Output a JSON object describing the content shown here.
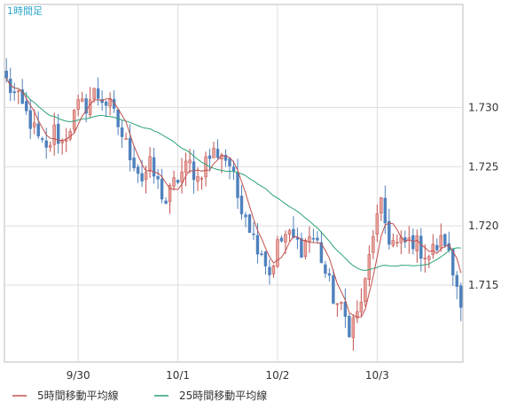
{
  "chart_data": {
    "type": "candlestick",
    "timeframe_label": "1時間足",
    "y_ticks": [
      1.715,
      1.72,
      1.725,
      1.73
    ],
    "y_tick_labels": [
      "1.715",
      "1.720",
      "1.725",
      "1.730"
    ],
    "ylim": [
      1.7085,
      1.7387
    ],
    "x_tick_labels": [
      "9/30",
      "10/1",
      "10/2",
      "10/3"
    ],
    "x_tick_index": [
      18,
      43,
      68,
      93
    ],
    "candle_count": 115,
    "legend": [
      {
        "name": "5時間移動平均線",
        "color": "#c0504d"
      },
      {
        "name": "25時間移動平均線",
        "color": "#2aa373"
      }
    ],
    "colors": {
      "up": "#e8a09a",
      "down": "#4f81bd",
      "ma5": "#c0504d",
      "ma25": "#2aa373",
      "grid": "#dddddd",
      "border": "#bbbbbb"
    },
    "close_anchors": [
      [
        0,
        1.7322
      ],
      [
        2,
        1.731
      ],
      [
        4,
        1.73
      ],
      [
        6,
        1.7288
      ],
      [
        8,
        1.7272
      ],
      [
        10,
        1.7262
      ],
      [
        12,
        1.728
      ],
      [
        14,
        1.727
      ],
      [
        16,
        1.7285
      ],
      [
        18,
        1.73
      ],
      [
        20,
        1.7302
      ],
      [
        22,
        1.7312
      ],
      [
        24,
        1.7308
      ],
      [
        26,
        1.73
      ],
      [
        28,
        1.7285
      ],
      [
        30,
        1.7268
      ],
      [
        32,
        1.7255
      ],
      [
        34,
        1.724
      ],
      [
        36,
        1.725
      ],
      [
        38,
        1.7235
      ],
      [
        40,
        1.722
      ],
      [
        42,
        1.7235
      ],
      [
        44,
        1.7245
      ],
      [
        46,
        1.7252
      ],
      [
        48,
        1.724
      ],
      [
        50,
        1.7255
      ],
      [
        52,
        1.7262
      ],
      [
        54,
        1.7262
      ],
      [
        56,
        1.7252
      ],
      [
        58,
        1.7225
      ],
      [
        60,
        1.7212
      ],
      [
        62,
        1.719
      ],
      [
        64,
        1.718
      ],
      [
        66,
        1.716
      ],
      [
        68,
        1.7183
      ],
      [
        70,
        1.7192
      ],
      [
        72,
        1.7188
      ],
      [
        74,
        1.7182
      ],
      [
        76,
        1.7192
      ],
      [
        78,
        1.7185
      ],
      [
        80,
        1.716
      ],
      [
        82,
        1.714
      ],
      [
        84,
        1.7128
      ],
      [
        86,
        1.7115
      ],
      [
        88,
        1.7125
      ],
      [
        90,
        1.715
      ],
      [
        92,
        1.7195
      ],
      [
        94,
        1.7215
      ],
      [
        96,
        1.719
      ],
      [
        98,
        1.7183
      ],
      [
        100,
        1.7185
      ],
      [
        102,
        1.7188
      ],
      [
        104,
        1.718
      ],
      [
        106,
        1.7175
      ],
      [
        108,
        1.7183
      ],
      [
        110,
        1.7188
      ],
      [
        112,
        1.716
      ],
      [
        114,
        1.714
      ]
    ]
  }
}
